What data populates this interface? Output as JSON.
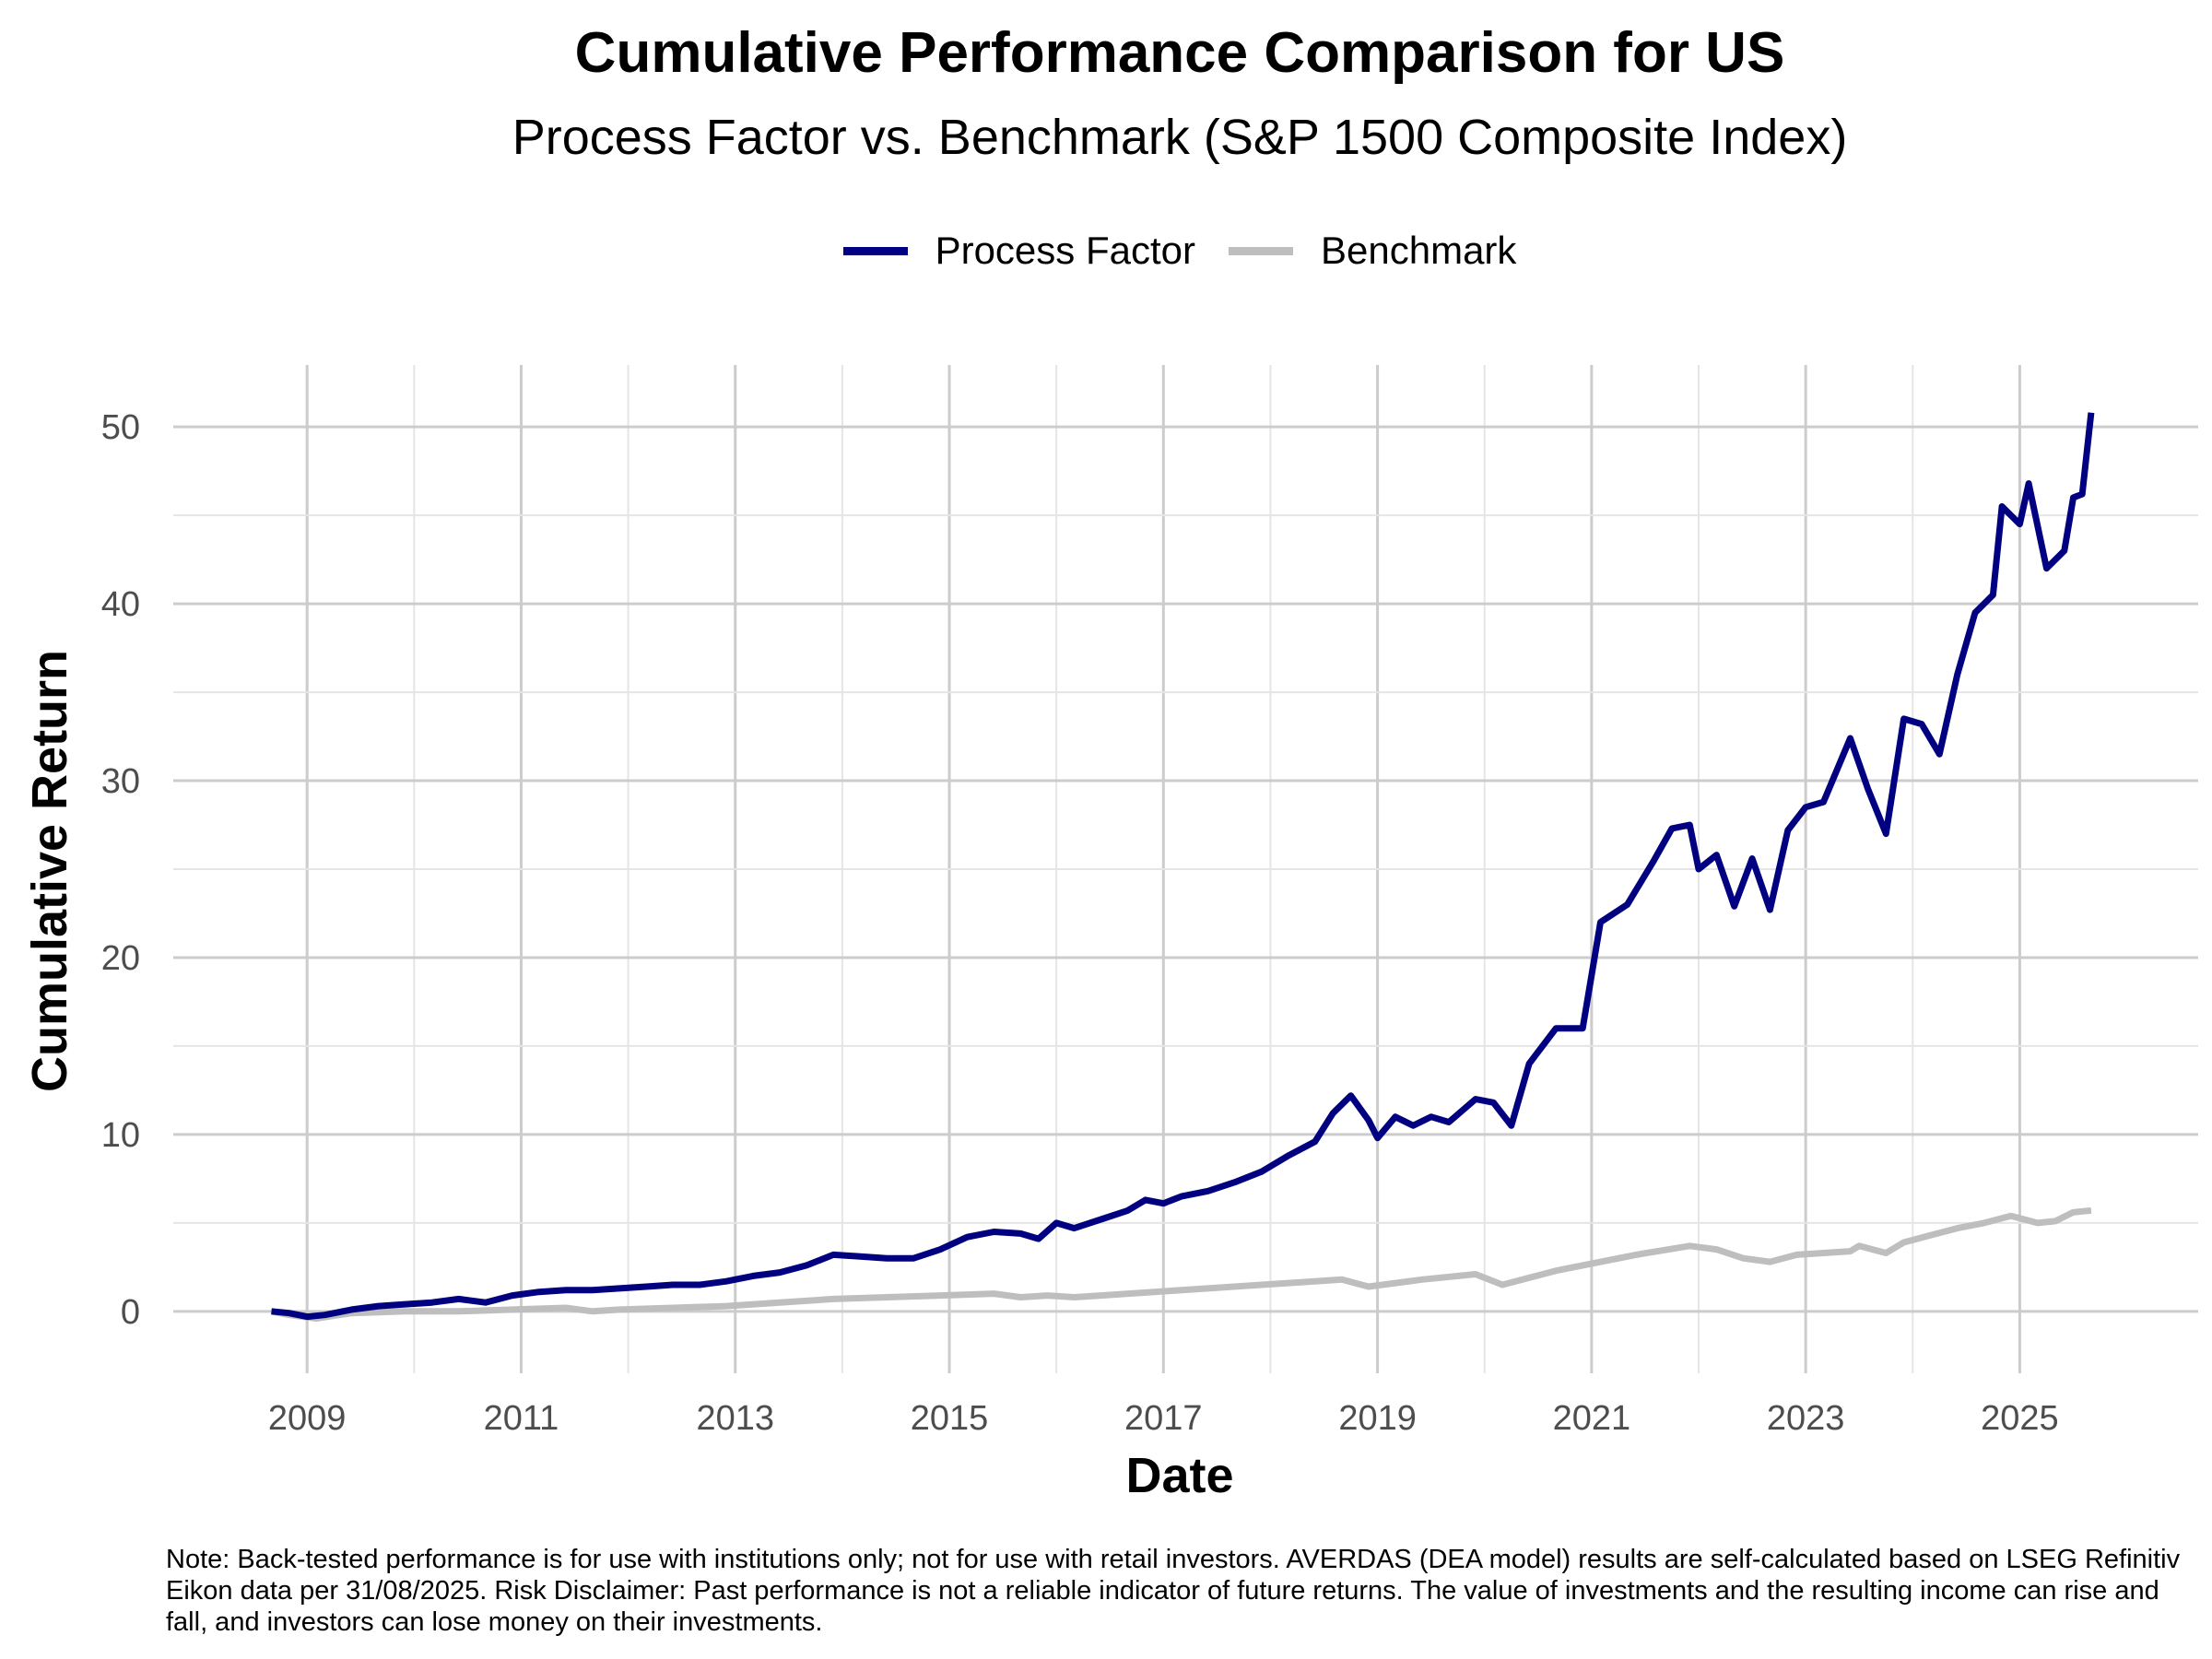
{
  "chart_data": {
    "type": "line",
    "title": "Cumulative Performance Comparison for US",
    "subtitle": "Process Factor vs. Benchmark (S&P 1500 Composite Index)",
    "xlabel": "Date",
    "ylabel": "Cumulative Return",
    "xlim": [
      "2007-10-01",
      "2026-09-01"
    ],
    "ylim": [
      -3.5,
      53.5
    ],
    "x_ticks": [
      2009,
      2011,
      2013,
      2015,
      2017,
      2019,
      2021,
      2023,
      2025
    ],
    "x_tick_labels": [
      "2009",
      "2011",
      "2013",
      "2015",
      "2017",
      "2019",
      "2021",
      "2023",
      "2025"
    ],
    "y_ticks": [
      0,
      10,
      20,
      30,
      40,
      50
    ],
    "y_tick_labels": [
      "0",
      "10",
      "20",
      "30",
      "40",
      "50"
    ],
    "grid": true,
    "legend_position": "top",
    "series": [
      {
        "name": "Process Factor",
        "color": "#000080",
        "points": [
          [
            "2008-09-01",
            0.0
          ],
          [
            "2008-11-01",
            -0.1
          ],
          [
            "2009-01-01",
            -0.3
          ],
          [
            "2009-03-01",
            -0.2
          ],
          [
            "2009-06-01",
            0.1
          ],
          [
            "2009-09-01",
            0.3
          ],
          [
            "2009-12-01",
            0.4
          ],
          [
            "2010-03-01",
            0.5
          ],
          [
            "2010-06-01",
            0.7
          ],
          [
            "2010-09-01",
            0.5
          ],
          [
            "2010-12-01",
            0.9
          ],
          [
            "2011-03-01",
            1.1
          ],
          [
            "2011-06-01",
            1.2
          ],
          [
            "2011-09-01",
            1.2
          ],
          [
            "2011-12-01",
            1.3
          ],
          [
            "2012-03-01",
            1.4
          ],
          [
            "2012-06-01",
            1.5
          ],
          [
            "2012-09-01",
            1.5
          ],
          [
            "2012-12-01",
            1.7
          ],
          [
            "2013-03-01",
            2.0
          ],
          [
            "2013-06-01",
            2.2
          ],
          [
            "2013-09-01",
            2.6
          ],
          [
            "2013-12-01",
            3.2
          ],
          [
            "2014-03-01",
            3.1
          ],
          [
            "2014-06-01",
            3.0
          ],
          [
            "2014-09-01",
            3.0
          ],
          [
            "2014-12-01",
            3.5
          ],
          [
            "2015-03-01",
            4.2
          ],
          [
            "2015-06-01",
            4.5
          ],
          [
            "2015-09-01",
            4.4
          ],
          [
            "2015-11-01",
            4.1
          ],
          [
            "2016-01-01",
            5.0
          ],
          [
            "2016-03-01",
            4.7
          ],
          [
            "2016-06-01",
            5.2
          ],
          [
            "2016-09-01",
            5.7
          ],
          [
            "2016-11-01",
            6.3
          ],
          [
            "2017-01-01",
            6.1
          ],
          [
            "2017-03-01",
            6.5
          ],
          [
            "2017-06-01",
            6.8
          ],
          [
            "2017-09-01",
            7.3
          ],
          [
            "2017-12-01",
            7.9
          ],
          [
            "2018-03-01",
            8.8
          ],
          [
            "2018-06-01",
            9.6
          ],
          [
            "2018-08-01",
            11.2
          ],
          [
            "2018-10-01",
            12.2
          ],
          [
            "2018-12-01",
            10.8
          ],
          [
            "2019-01-01",
            9.8
          ],
          [
            "2019-03-01",
            11.0
          ],
          [
            "2019-05-01",
            10.5
          ],
          [
            "2019-07-01",
            11.0
          ],
          [
            "2019-09-01",
            10.7
          ],
          [
            "2019-12-01",
            12.0
          ],
          [
            "2020-02-01",
            11.8
          ],
          [
            "2020-04-01",
            10.5
          ],
          [
            "2020-06-01",
            14.0
          ],
          [
            "2020-09-01",
            16.0
          ],
          [
            "2020-12-01",
            16.0
          ],
          [
            "2021-02-01",
            22.0
          ],
          [
            "2021-05-01",
            23.0
          ],
          [
            "2021-08-01",
            25.5
          ],
          [
            "2021-10-01",
            27.3
          ],
          [
            "2021-12-01",
            27.5
          ],
          [
            "2022-01-01",
            25.0
          ],
          [
            "2022-03-01",
            25.8
          ],
          [
            "2022-05-01",
            22.9
          ],
          [
            "2022-07-01",
            25.6
          ],
          [
            "2022-09-01",
            22.7
          ],
          [
            "2022-11-01",
            27.2
          ],
          [
            "2023-01-01",
            28.5
          ],
          [
            "2023-03-01",
            28.8
          ],
          [
            "2023-06-01",
            32.4
          ],
          [
            "2023-08-01",
            29.5
          ],
          [
            "2023-10-01",
            27.0
          ],
          [
            "2023-12-01",
            33.5
          ],
          [
            "2024-02-01",
            33.2
          ],
          [
            "2024-04-01",
            31.5
          ],
          [
            "2024-06-01",
            36.0
          ],
          [
            "2024-08-01",
            39.5
          ],
          [
            "2024-10-01",
            40.5
          ],
          [
            "2024-11-01",
            45.5
          ],
          [
            "2025-01-01",
            44.5
          ],
          [
            "2025-02-01",
            46.8
          ],
          [
            "2025-04-01",
            42.0
          ],
          [
            "2025-06-01",
            43.0
          ],
          [
            "2025-07-01",
            46.0
          ],
          [
            "2025-08-01",
            46.2
          ],
          [
            "2025-09-01",
            50.8
          ]
        ]
      },
      {
        "name": "Benchmark",
        "color": "#bebebe",
        "points": [
          [
            "2008-09-01",
            0.0
          ],
          [
            "2008-11-01",
            -0.2
          ],
          [
            "2009-02-01",
            -0.4
          ],
          [
            "2009-06-01",
            -0.1
          ],
          [
            "2009-12-01",
            0.0
          ],
          [
            "2010-06-01",
            0.0
          ],
          [
            "2010-12-01",
            0.1
          ],
          [
            "2011-06-01",
            0.2
          ],
          [
            "2011-09-01",
            0.0
          ],
          [
            "2011-12-01",
            0.1
          ],
          [
            "2012-06-01",
            0.2
          ],
          [
            "2012-12-01",
            0.3
          ],
          [
            "2013-06-01",
            0.5
          ],
          [
            "2013-12-01",
            0.7
          ],
          [
            "2014-06-01",
            0.8
          ],
          [
            "2014-12-01",
            0.9
          ],
          [
            "2015-06-01",
            1.0
          ],
          [
            "2015-09-01",
            0.8
          ],
          [
            "2015-12-01",
            0.9
          ],
          [
            "2016-03-01",
            0.8
          ],
          [
            "2016-06-01",
            0.9
          ],
          [
            "2016-12-01",
            1.1
          ],
          [
            "2017-06-01",
            1.3
          ],
          [
            "2017-12-01",
            1.5
          ],
          [
            "2018-03-01",
            1.6
          ],
          [
            "2018-06-01",
            1.7
          ],
          [
            "2018-09-01",
            1.8
          ],
          [
            "2018-12-01",
            1.4
          ],
          [
            "2019-06-01",
            1.8
          ],
          [
            "2019-12-01",
            2.1
          ],
          [
            "2020-03-01",
            1.5
          ],
          [
            "2020-06-01",
            1.9
          ],
          [
            "2020-09-01",
            2.3
          ],
          [
            "2020-12-01",
            2.6
          ],
          [
            "2021-06-01",
            3.2
          ],
          [
            "2021-12-01",
            3.7
          ],
          [
            "2022-03-01",
            3.5
          ],
          [
            "2022-06-01",
            3.0
          ],
          [
            "2022-09-01",
            2.8
          ],
          [
            "2022-12-01",
            3.2
          ],
          [
            "2023-06-01",
            3.4
          ],
          [
            "2023-07-01",
            3.7
          ],
          [
            "2023-10-01",
            3.3
          ],
          [
            "2023-12-01",
            3.9
          ],
          [
            "2024-03-01",
            4.3
          ],
          [
            "2024-06-01",
            4.7
          ],
          [
            "2024-09-01",
            5.0
          ],
          [
            "2024-12-01",
            5.4
          ],
          [
            "2025-03-01",
            5.0
          ],
          [
            "2025-05-01",
            5.1
          ],
          [
            "2025-07-01",
            5.6
          ],
          [
            "2025-09-01",
            5.7
          ]
        ]
      }
    ]
  },
  "footnote": "Note: Back-tested performance is for use with institutions only; not for use with retail investors. AVERDAS (DEA model) results are self-calculated based on LSEG Refinitiv Eikon data per 31/08/2025. Risk Disclaimer: Past performance is not a reliable indicator of future returns. The value of investments and the resulting income can rise and fall, and investors can lose money on their investments."
}
